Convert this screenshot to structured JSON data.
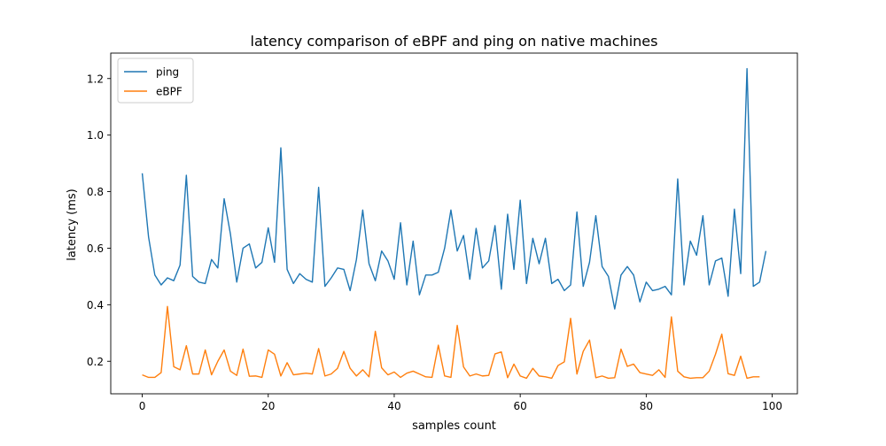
{
  "chart_data": {
    "type": "line",
    "title": "latency comparison of eBPF and ping on native machines",
    "xlabel": "samples count",
    "ylabel": "latency (ms)",
    "xlim": [
      -5,
      104
    ],
    "ylim": [
      0.085,
      1.29
    ],
    "xticks": [
      0,
      20,
      40,
      60,
      80,
      100
    ],
    "yticks": [
      0.2,
      0.4,
      0.6,
      0.8,
      1.0,
      1.2
    ],
    "xtick_labels": [
      "0",
      "20",
      "40",
      "60",
      "80",
      "100"
    ],
    "ytick_labels": [
      "0.2",
      "0.4",
      "0.6",
      "0.8",
      "1.0",
      "1.2"
    ],
    "grid": false,
    "legend_position": "top-left",
    "series": [
      {
        "name": "ping",
        "color": "#1f77b4",
        "x": [
          0,
          1,
          2,
          3,
          4,
          5,
          6,
          7,
          8,
          9,
          10,
          11,
          12,
          13,
          14,
          15,
          16,
          17,
          18,
          19,
          20,
          21,
          22,
          23,
          24,
          25,
          26,
          27,
          28,
          29,
          30,
          31,
          32,
          33,
          34,
          35,
          36,
          37,
          38,
          39,
          40,
          41,
          42,
          43,
          44,
          45,
          46,
          47,
          48,
          49,
          50,
          51,
          52,
          53,
          54,
          55,
          56,
          57,
          58,
          59,
          60,
          61,
          62,
          63,
          64,
          65,
          66,
          67,
          68,
          69,
          70,
          71,
          72,
          73,
          74,
          75,
          76,
          77,
          78,
          79,
          80,
          81,
          82,
          83,
          84,
          85,
          86,
          87,
          88,
          89,
          90,
          91,
          92,
          93,
          94,
          95,
          96,
          97,
          98,
          99
        ],
        "values": [
          0.865,
          0.64,
          0.505,
          0.47,
          0.495,
          0.485,
          0.54,
          0.858,
          0.5,
          0.48,
          0.475,
          0.56,
          0.53,
          0.775,
          0.65,
          0.48,
          0.6,
          0.615,
          0.53,
          0.55,
          0.672,
          0.55,
          0.955,
          0.525,
          0.475,
          0.51,
          0.49,
          0.48,
          0.815,
          0.465,
          0.495,
          0.53,
          0.525,
          0.45,
          0.56,
          0.735,
          0.545,
          0.485,
          0.59,
          0.555,
          0.49,
          0.69,
          0.47,
          0.625,
          0.435,
          0.505,
          0.505,
          0.515,
          0.6,
          0.735,
          0.59,
          0.645,
          0.49,
          0.67,
          0.53,
          0.555,
          0.68,
          0.455,
          0.72,
          0.525,
          0.77,
          0.475,
          0.635,
          0.545,
          0.635,
          0.475,
          0.49,
          0.45,
          0.47,
          0.728,
          0.465,
          0.55,
          0.715,
          0.535,
          0.5,
          0.385,
          0.505,
          0.535,
          0.505,
          0.41,
          0.48,
          0.45,
          0.455,
          0.465,
          0.435,
          0.845,
          0.47,
          0.625,
          0.575,
          0.715,
          0.47,
          0.555,
          0.565,
          0.43,
          0.738,
          0.51,
          1.235,
          0.465,
          0.48,
          0.59
        ]
      },
      {
        "name": "eBPF",
        "color": "#ff7f0e",
        "x": [
          0,
          1,
          2,
          3,
          4,
          5,
          6,
          7,
          8,
          9,
          10,
          11,
          12,
          13,
          14,
          15,
          16,
          17,
          18,
          19,
          20,
          21,
          22,
          23,
          24,
          25,
          26,
          27,
          28,
          29,
          30,
          31,
          32,
          33,
          34,
          35,
          36,
          37,
          38,
          39,
          40,
          41,
          42,
          43,
          44,
          45,
          46,
          47,
          48,
          49,
          50,
          51,
          52,
          53,
          54,
          55,
          56,
          57,
          58,
          59,
          60,
          61,
          62,
          63,
          64,
          65,
          66,
          67,
          68,
          69,
          70,
          71,
          72,
          73,
          74,
          75,
          76,
          77,
          78,
          79,
          80,
          81,
          82,
          83,
          84,
          85,
          86,
          87,
          88,
          89,
          90,
          91,
          92,
          93,
          94,
          95,
          96,
          97,
          98
        ],
        "values": [
          0.152,
          0.143,
          0.143,
          0.16,
          0.394,
          0.181,
          0.17,
          0.255,
          0.155,
          0.155,
          0.24,
          0.152,
          0.2,
          0.24,
          0.165,
          0.15,
          0.243,
          0.147,
          0.148,
          0.143,
          0.24,
          0.225,
          0.148,
          0.195,
          0.152,
          0.155,
          0.158,
          0.155,
          0.245,
          0.148,
          0.155,
          0.175,
          0.235,
          0.175,
          0.148,
          0.17,
          0.145,
          0.306,
          0.177,
          0.152,
          0.162,
          0.143,
          0.158,
          0.165,
          0.155,
          0.145,
          0.143,
          0.257,
          0.148,
          0.143,
          0.327,
          0.18,
          0.148,
          0.155,
          0.148,
          0.15,
          0.226,
          0.233,
          0.142,
          0.19,
          0.148,
          0.14,
          0.175,
          0.148,
          0.145,
          0.14,
          0.185,
          0.198,
          0.352,
          0.155,
          0.235,
          0.275,
          0.142,
          0.148,
          0.14,
          0.142,
          0.243,
          0.182,
          0.19,
          0.16,
          0.155,
          0.15,
          0.17,
          0.143,
          0.357,
          0.165,
          0.145,
          0.14,
          0.142,
          0.142,
          0.165,
          0.225,
          0.296,
          0.156,
          0.15,
          0.218,
          0.14,
          0.145,
          0.145
        ]
      }
    ]
  }
}
